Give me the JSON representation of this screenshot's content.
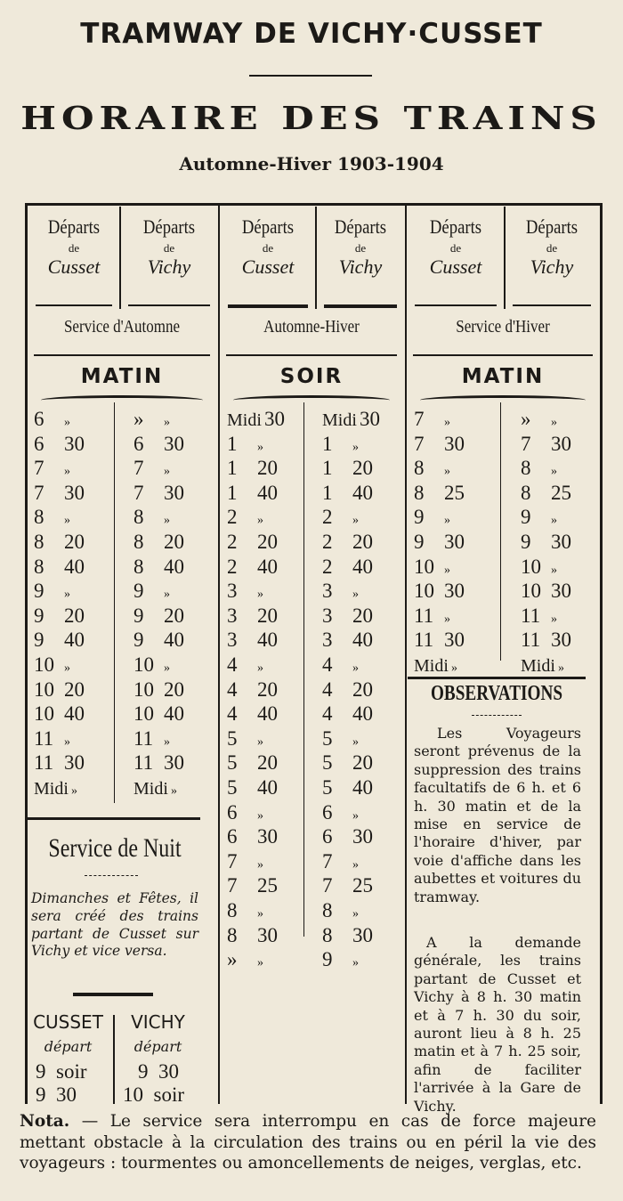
{
  "header": {
    "company": "TRAMWAY DE VICHY·CUSSET",
    "title": "HORAIRE DES TRAINS",
    "season": "Automne-Hiver 1903-1904"
  },
  "columns": [
    {
      "departs": "Départs",
      "de": "de",
      "station": "Cusset"
    },
    {
      "departs": "Départs",
      "de": "de",
      "station": "Vichy"
    },
    {
      "departs": "Départs",
      "de": "de",
      "station": "Cusset"
    },
    {
      "departs": "Départs",
      "de": "de",
      "station": "Vichy"
    },
    {
      "departs": "Départs",
      "de": "de",
      "station": "Cusset"
    },
    {
      "departs": "Départs",
      "de": "de",
      "station": "Vichy"
    }
  ],
  "sections": [
    {
      "service": "Service d'Automne",
      "period": "MATIN",
      "cusset": [
        [
          "6",
          "»"
        ],
        [
          "6",
          "30"
        ],
        [
          "7",
          "»"
        ],
        [
          "7",
          "30"
        ],
        [
          "8",
          "»"
        ],
        [
          "8",
          "20"
        ],
        [
          "8",
          "40"
        ],
        [
          "9",
          "»"
        ],
        [
          "9",
          "20"
        ],
        [
          "9",
          "40"
        ],
        [
          "10",
          "»"
        ],
        [
          "10",
          "20"
        ],
        [
          "10",
          "40"
        ],
        [
          "11",
          "»"
        ],
        [
          "11",
          "30"
        ],
        [
          "Midi",
          "»"
        ]
      ],
      "vichy": [
        [
          "»",
          "»"
        ],
        [
          "6",
          "30"
        ],
        [
          "7",
          "»"
        ],
        [
          "7",
          "30"
        ],
        [
          "8",
          "»"
        ],
        [
          "8",
          "20"
        ],
        [
          "8",
          "40"
        ],
        [
          "9",
          "»"
        ],
        [
          "9",
          "20"
        ],
        [
          "9",
          "40"
        ],
        [
          "10",
          "»"
        ],
        [
          "10",
          "20"
        ],
        [
          "10",
          "40"
        ],
        [
          "11",
          "»"
        ],
        [
          "11",
          "30"
        ],
        [
          "Midi",
          "»"
        ]
      ]
    },
    {
      "service": "Automne-Hiver",
      "period": "SOIR",
      "cusset": [
        [
          "Midi",
          "30"
        ],
        [
          "1",
          "»"
        ],
        [
          "1",
          "20"
        ],
        [
          "1",
          "40"
        ],
        [
          "2",
          "»"
        ],
        [
          "2",
          "20"
        ],
        [
          "2",
          "40"
        ],
        [
          "3",
          "»"
        ],
        [
          "3",
          "20"
        ],
        [
          "3",
          "40"
        ],
        [
          "4",
          "»"
        ],
        [
          "4",
          "20"
        ],
        [
          "4",
          "40"
        ],
        [
          "5",
          "»"
        ],
        [
          "5",
          "20"
        ],
        [
          "5",
          "40"
        ],
        [
          "6",
          "»"
        ],
        [
          "6",
          "30"
        ],
        [
          "7",
          "»"
        ],
        [
          "7",
          "25"
        ],
        [
          "8",
          "»"
        ],
        [
          "8",
          "30"
        ],
        [
          "»",
          "»"
        ]
      ],
      "vichy": [
        [
          "Midi",
          "30"
        ],
        [
          "1",
          "»"
        ],
        [
          "1",
          "20"
        ],
        [
          "1",
          "40"
        ],
        [
          "2",
          "»"
        ],
        [
          "2",
          "20"
        ],
        [
          "2",
          "40"
        ],
        [
          "3",
          "»"
        ],
        [
          "3",
          "20"
        ],
        [
          "3",
          "40"
        ],
        [
          "4",
          "»"
        ],
        [
          "4",
          "20"
        ],
        [
          "4",
          "40"
        ],
        [
          "5",
          "»"
        ],
        [
          "5",
          "20"
        ],
        [
          "5",
          "40"
        ],
        [
          "6",
          "»"
        ],
        [
          "6",
          "30"
        ],
        [
          "7",
          "»"
        ],
        [
          "7",
          "25"
        ],
        [
          "8",
          "»"
        ],
        [
          "8",
          "30"
        ],
        [
          "9",
          "»"
        ]
      ]
    },
    {
      "service": "Service d'Hiver",
      "period": "MATIN",
      "cusset": [
        [
          "7",
          "»"
        ],
        [
          "7",
          "30"
        ],
        [
          "8",
          "»"
        ],
        [
          "8",
          "25"
        ],
        [
          "9",
          "»"
        ],
        [
          "9",
          "30"
        ],
        [
          "10",
          "»"
        ],
        [
          "10",
          "30"
        ],
        [
          "11",
          "»"
        ],
        [
          "11",
          "30"
        ],
        [
          "Midi",
          "»"
        ]
      ],
      "vichy": [
        [
          "»",
          "»"
        ],
        [
          "7",
          "30"
        ],
        [
          "8",
          "»"
        ],
        [
          "8",
          "25"
        ],
        [
          "9",
          "»"
        ],
        [
          "9",
          "30"
        ],
        [
          "10",
          "»"
        ],
        [
          "10",
          "30"
        ],
        [
          "11",
          "»"
        ],
        [
          "11",
          "30"
        ],
        [
          "Midi",
          "»"
        ]
      ]
    }
  ],
  "night": {
    "title": "Service de Nuit",
    "note": "Dimanches et Fêtes, il sera créé des trains partant de Cusset sur Vichy et vice versa.",
    "cusset": {
      "label": "CUSSET",
      "sub": "départ",
      "times": [
        "9  soir",
        "9  30"
      ]
    },
    "vichy": {
      "label": "VICHY",
      "sub": "départ",
      "times": [
        "9  30",
        "10  soir"
      ]
    }
  },
  "observations": {
    "title": "OBSERVATIONS",
    "p1": "Les Voyageurs seront prévenus de la suppression des trains facultatifs de 6 h. et 6 h. 30 matin et de la mise en service de l'horaire d'hiver, par voie d'affiche dans les aubettes et voitures du tramway.",
    "p2": "A la demande générale, les trains partant de Cusset et Vichy à 8 h. 30 matin et à 7 h. 30 du soir, auront lieu à 8 h. 25 matin et à 7 h. 25 soir, afin de faciliter l'arrivée à la Gare de Vichy."
  },
  "nota": {
    "label": "Nota.",
    "text": " — Le service sera interrompu en cas de force majeure mettant obstacle à la circulation des trains ou en péril la vie des voyageurs : tourmentes ou amoncellements de neiges, verglas, etc."
  }
}
